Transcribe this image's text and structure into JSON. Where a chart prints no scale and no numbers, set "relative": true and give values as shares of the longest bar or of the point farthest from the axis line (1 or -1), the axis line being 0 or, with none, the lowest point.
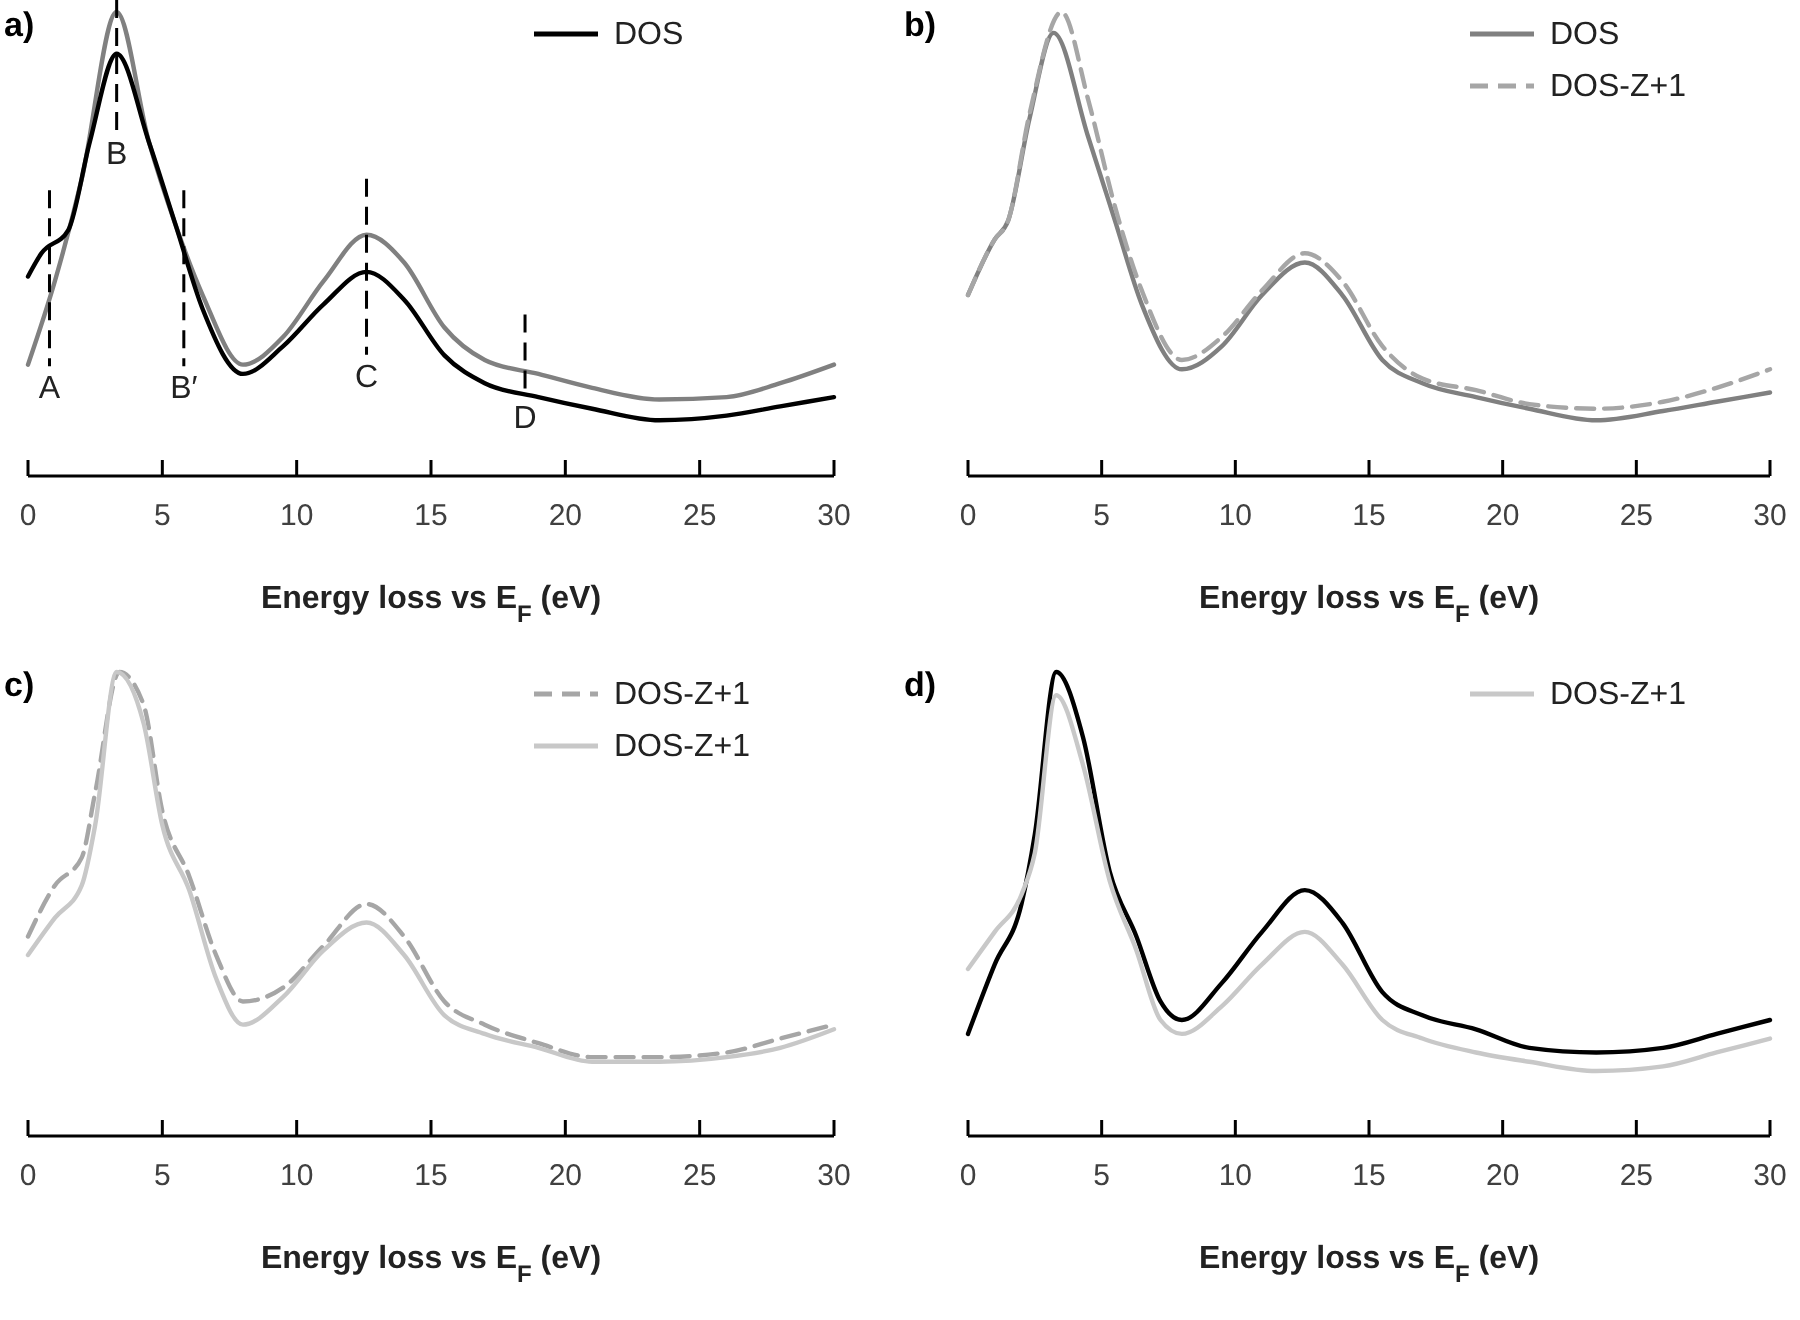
{
  "chart_data": [
    {
      "type": "line",
      "title": "a)",
      "xlabel": "Energy loss vs E$_{F}$ (eV)",
      "relative": true,
      "xlim": [
        0,
        30
      ],
      "xticks": [
        0,
        5,
        10,
        15,
        20,
        25,
        30
      ],
      "legend": "top right",
      "grid": false,
      "series": [
        {
          "color": "#808080",
          "line_style": "solid",
          "x": [
            0,
            1,
            2,
            3.3,
            4.5,
            5.5,
            6.5,
            8,
            9.5,
            11,
            12.6,
            14,
            15.5,
            17,
            19,
            21,
            23.5,
            26,
            28,
            30
          ],
          "values": [
            0.24,
            0.42,
            0.64,
            1.0,
            0.72,
            0.54,
            0.39,
            0.24,
            0.3,
            0.42,
            0.52,
            0.46,
            0.32,
            0.25,
            0.22,
            0.19,
            0.165,
            0.17,
            0.2,
            0.24
          ]
        },
        {
          "name": "DOS",
          "color": "#000000",
          "line_style": "solid",
          "x": [
            0,
            0.5,
            1.5,
            2.3,
            3.3,
            4.5,
            5.5,
            6.5,
            8,
            9.5,
            11,
            12.6,
            14,
            15.5,
            17,
            19,
            21,
            23.5,
            26,
            28,
            30
          ],
          "values": [
            0.43,
            0.48,
            0.53,
            0.72,
            0.91,
            0.72,
            0.54,
            0.36,
            0.22,
            0.28,
            0.37,
            0.44,
            0.38,
            0.26,
            0.2,
            0.17,
            0.145,
            0.12,
            0.13,
            0.15,
            0.17
          ]
        }
      ],
      "ref_lines": [
        {
          "axis": "x",
          "value": 0.8,
          "label": "A",
          "line_style": "dashed",
          "color": "#000000"
        },
        {
          "axis": "x",
          "value": 3.3,
          "label": "B",
          "line_style": "dashed",
          "color": "#000000"
        },
        {
          "axis": "x",
          "value": 5.8,
          "label": "B′",
          "line_style": "dashed",
          "color": "#000000"
        },
        {
          "axis": "x",
          "value": 12.6,
          "label": "C",
          "line_style": "dashed",
          "color": "#000000"
        },
        {
          "axis": "x",
          "value": 18.5,
          "label": "D",
          "line_style": "dashed",
          "color": "#000000"
        }
      ]
    },
    {
      "type": "line",
      "title": "b)",
      "xlabel": "Energy loss vs E$_{F}$ (eV)",
      "relative": true,
      "xlim": [
        0,
        30
      ],
      "xticks": [
        0,
        5,
        10,
        15,
        20,
        25,
        30
      ],
      "legend": "top right",
      "grid": false,
      "series": [
        {
          "name": "DOS",
          "color": "#808080",
          "line_style": "solid",
          "x": [
            0,
            1,
            1.5,
            2.3,
            3.2,
            4.5,
            5.5,
            6.5,
            8,
            9.5,
            11,
            12.6,
            14,
            15.5,
            17,
            19,
            21,
            23.5,
            26,
            28,
            30
          ],
          "values": [
            0.39,
            0.51,
            0.55,
            0.77,
            0.955,
            0.73,
            0.55,
            0.37,
            0.23,
            0.28,
            0.39,
            0.46,
            0.39,
            0.25,
            0.2,
            0.17,
            0.145,
            0.12,
            0.14,
            0.16,
            0.18
          ]
        },
        {
          "name": "DOS-Z+1",
          "color": "#a6a6a6",
          "line_style": "dashed",
          "x": [
            0,
            1,
            1.5,
            2.3,
            3.5,
            4.5,
            5.5,
            6.5,
            8,
            9.5,
            11,
            12.6,
            14,
            15.5,
            17,
            19,
            21,
            23.5,
            26,
            28,
            30
          ],
          "values": [
            0.39,
            0.51,
            0.55,
            0.78,
            1.0,
            0.81,
            0.58,
            0.4,
            0.25,
            0.3,
            0.4,
            0.48,
            0.42,
            0.28,
            0.21,
            0.185,
            0.155,
            0.145,
            0.16,
            0.19,
            0.23
          ]
        }
      ]
    },
    {
      "type": "line",
      "title": "c)",
      "xlabel": "Energy loss vs E$_{F}$ (eV)",
      "relative": true,
      "xlim": [
        0,
        30
      ],
      "xticks": [
        0,
        5,
        10,
        15,
        20,
        25,
        30
      ],
      "legend": "top right",
      "grid": false,
      "series": [
        {
          "name": "DOS-Z+1",
          "color": "#a6a6a6",
          "line_style": "dashed",
          "x": [
            0,
            1,
            2,
            2.5,
            3.4,
            4.3,
            5,
            6,
            7,
            8,
            9.5,
            11,
            12.6,
            14,
            15.5,
            17,
            19,
            21,
            23.5,
            26,
            28,
            30
          ],
          "values": [
            0.43,
            0.54,
            0.6,
            0.74,
            1.0,
            0.93,
            0.7,
            0.56,
            0.39,
            0.29,
            0.32,
            0.41,
            0.5,
            0.43,
            0.29,
            0.24,
            0.2,
            0.17,
            0.17,
            0.18,
            0.21,
            0.24
          ]
        },
        {
          "name": "DOS-Z+1",
          "color": "#c8c8c8",
          "line_style": "solid",
          "x": [
            0,
            1,
            2,
            2.5,
            3.3,
            4.3,
            5,
            6,
            7,
            8,
            9.5,
            11,
            12.6,
            14,
            15.5,
            17,
            19,
            21,
            23.5,
            26,
            28,
            30
          ],
          "values": [
            0.39,
            0.47,
            0.54,
            0.67,
            1.0,
            0.89,
            0.67,
            0.53,
            0.34,
            0.24,
            0.3,
            0.4,
            0.46,
            0.39,
            0.26,
            0.22,
            0.19,
            0.16,
            0.16,
            0.17,
            0.19,
            0.23
          ]
        }
      ]
    },
    {
      "type": "line",
      "title": "d)",
      "xlabel": "Energy loss vs E$_{F}$ (eV)",
      "relative": true,
      "xlim": [
        0,
        30
      ],
      "xticks": [
        0,
        5,
        10,
        15,
        20,
        25,
        30
      ],
      "legend": "top right",
      "grid": false,
      "series": [
        {
          "color": "#000000",
          "line_style": "solid",
          "x": [
            0,
            1,
            2,
            2.5,
            3.3,
            4.3,
            5.3,
            6.3,
            7.2,
            8,
            9.5,
            11,
            12.6,
            14,
            15.5,
            17,
            19,
            21,
            23.5,
            26,
            28,
            30
          ],
          "values": [
            0.22,
            0.37,
            0.5,
            0.65,
            1.0,
            0.86,
            0.57,
            0.43,
            0.29,
            0.25,
            0.33,
            0.44,
            0.53,
            0.46,
            0.31,
            0.26,
            0.23,
            0.19,
            0.18,
            0.19,
            0.22,
            0.25
          ]
        },
        {
          "name": "DOS-Z+1",
          "color": "#c8c8c8",
          "line_style": "solid",
          "x": [
            0,
            1,
            2,
            2.5,
            3.3,
            4.3,
            5.3,
            6.3,
            7.2,
            8,
            9.5,
            11,
            12.6,
            14,
            15.5,
            17,
            19,
            21,
            23.5,
            26,
            28,
            30
          ],
          "values": [
            0.36,
            0.44,
            0.52,
            0.61,
            0.95,
            0.8,
            0.55,
            0.4,
            0.25,
            0.22,
            0.28,
            0.37,
            0.44,
            0.37,
            0.25,
            0.21,
            0.18,
            0.16,
            0.14,
            0.15,
            0.18,
            0.21
          ]
        }
      ]
    }
  ]
}
